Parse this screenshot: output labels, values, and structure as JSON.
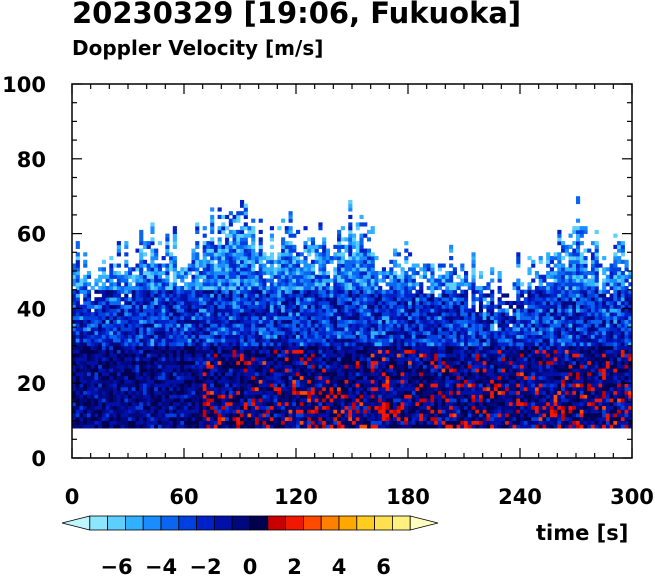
{
  "chart_data": {
    "type": "heatmap",
    "title": "20230329 [19:06, Fukuoka]",
    "subtitle": "Doppler Velocity [m/s]",
    "xlabel": "time [s]",
    "ylabel": "",
    "xlim": [
      0,
      300
    ],
    "ylim": [
      0,
      100
    ],
    "x_ticks": [
      0,
      60,
      120,
      180,
      240,
      300
    ],
    "y_ticks": [
      0,
      20,
      40,
      60,
      80,
      100
    ],
    "data_bottom_height": 8,
    "colorbar": {
      "range": [
        -8,
        8
      ],
      "ticks": [
        -6,
        -4,
        -2,
        0,
        2,
        4,
        6
      ],
      "tick_labels": [
        "−6",
        "−4",
        "−2",
        "0",
        "2",
        "4",
        "6"
      ],
      "colors": [
        "#bff5ff",
        "#8ce6ff",
        "#5ccfff",
        "#30b0ff",
        "#1a8cff",
        "#0a66f0",
        "#0040e0",
        "#0020c8",
        "#0010a8",
        "#000880",
        "#000050",
        "#c80000",
        "#f01800",
        "#ff4a00",
        "#ff8000",
        "#ffa800",
        "#ffcc20",
        "#ffe050",
        "#fff080",
        "#ffffc0"
      ]
    },
    "echo_top_profile": [
      {
        "t": 0,
        "top": 52
      },
      {
        "t": 15,
        "top": 48
      },
      {
        "t": 30,
        "top": 55
      },
      {
        "t": 45,
        "top": 58
      },
      {
        "t": 60,
        "top": 55
      },
      {
        "t": 75,
        "top": 62
      },
      {
        "t": 90,
        "top": 66
      },
      {
        "t": 105,
        "top": 56
      },
      {
        "t": 120,
        "top": 64
      },
      {
        "t": 135,
        "top": 58
      },
      {
        "t": 150,
        "top": 64
      },
      {
        "t": 165,
        "top": 56
      },
      {
        "t": 180,
        "top": 55
      },
      {
        "t": 195,
        "top": 54
      },
      {
        "t": 210,
        "top": 52
      },
      {
        "t": 225,
        "top": 46
      },
      {
        "t": 240,
        "top": 50
      },
      {
        "t": 255,
        "top": 58
      },
      {
        "t": 270,
        "top": 64
      },
      {
        "t": 285,
        "top": 56
      },
      {
        "t": 300,
        "top": 52
      }
    ],
    "positive_velocity_zone": {
      "t_start": 70,
      "t_end": 300,
      "height_min": 8,
      "height_max": 28
    }
  }
}
